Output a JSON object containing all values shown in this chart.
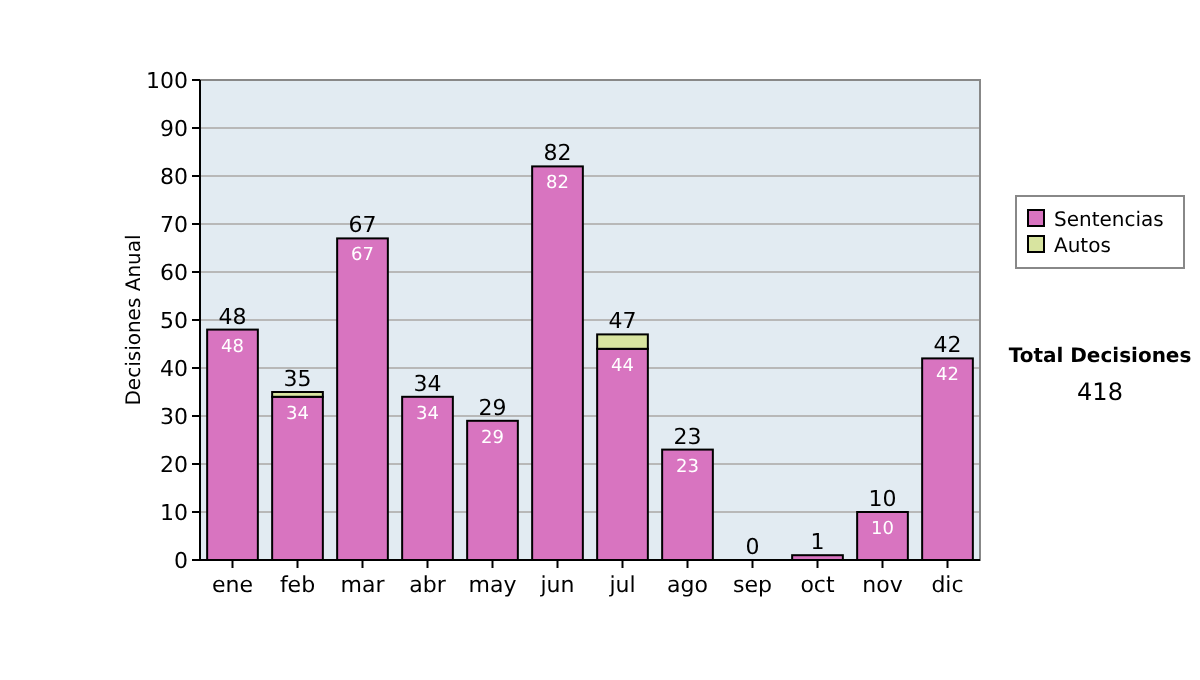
{
  "chart_data": {
    "type": "bar",
    "stacked": true,
    "ylabel": "Decisiones Anual",
    "categories": [
      "ene",
      "feb",
      "mar",
      "abr",
      "may",
      "jun",
      "jul",
      "ago",
      "sep",
      "oct",
      "nov",
      "dic"
    ],
    "series": [
      {
        "name": "Sentencias",
        "color": "#d874c0",
        "values": [
          48,
          34,
          67,
          34,
          29,
          82,
          44,
          23,
          0,
          1,
          10,
          42
        ],
        "value_labels": [
          "48",
          "34",
          "67",
          "34",
          "29",
          "82",
          "44",
          "23",
          null,
          null,
          "10",
          "42"
        ]
      },
      {
        "name": "Autos",
        "color": "#d8e4a0",
        "values": [
          0,
          1,
          0,
          0,
          0,
          0,
          3,
          0,
          0,
          0,
          0,
          0
        ]
      }
    ],
    "totals": [
      "48",
      "35",
      "67",
      "34",
      "29",
      "82",
      "47",
      "23",
      "0",
      "1",
      "10",
      "42"
    ],
    "ylim": [
      0,
      100
    ],
    "yticks": [
      0,
      10,
      20,
      30,
      40,
      50,
      60,
      70,
      80,
      90,
      100
    ],
    "grid": "y",
    "legend": "right",
    "annotations": [
      "Total Decisiones",
      "418"
    ]
  }
}
